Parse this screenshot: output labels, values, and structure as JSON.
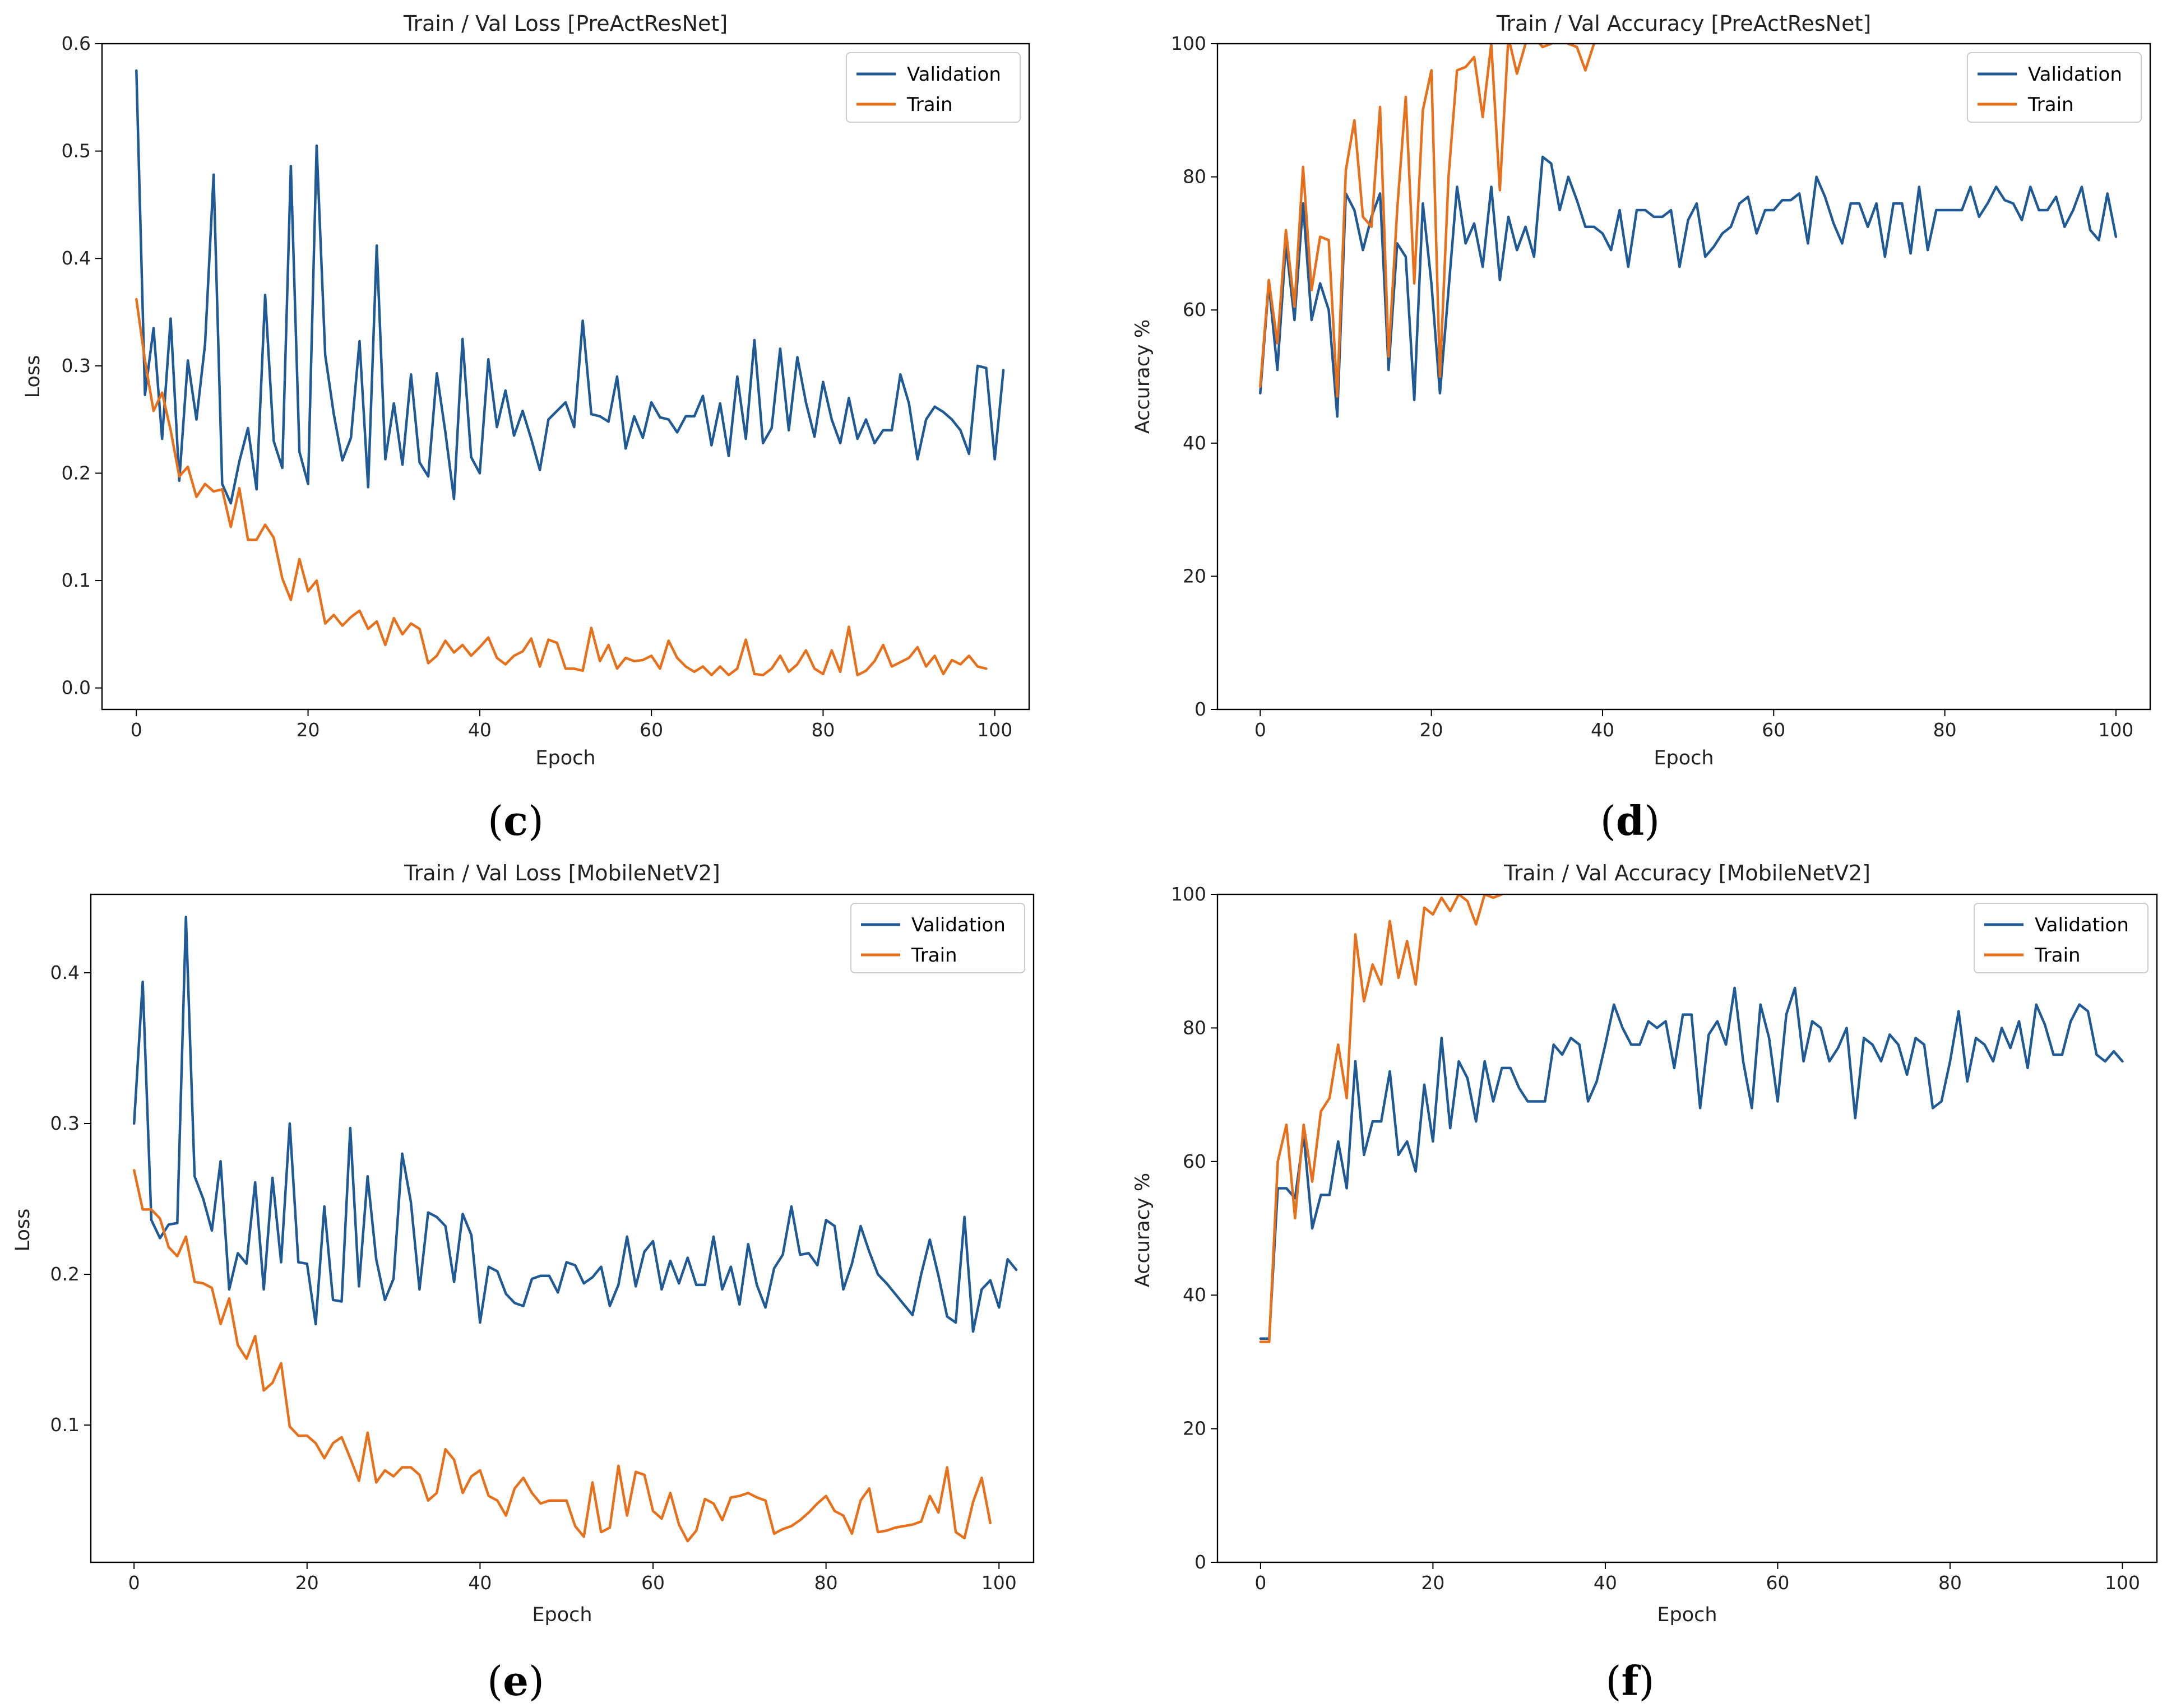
{
  "figure": {
    "captions": [
      {
        "open": "(",
        "letter": "c",
        "close": ")"
      },
      {
        "open": "(",
        "letter": "d",
        "close": ")"
      },
      {
        "open": "(",
        "letter": "e",
        "close": ")"
      },
      {
        "open": "(",
        "letter": "f",
        "close": ")"
      }
    ]
  },
  "colors": {
    "validation": "#1f5a96",
    "train": "#e8701a"
  },
  "chart_data": [
    {
      "type": "line",
      "title": "Train / Val Loss [PreActResNet]",
      "xlabel": "Epoch",
      "ylabel": "Loss",
      "xlim": [
        -4,
        104
      ],
      "ylim": [
        -0.02,
        0.6
      ],
      "xticks": [
        0,
        20,
        40,
        60,
        80,
        100
      ],
      "yticks": [
        0.0,
        0.1,
        0.2,
        0.3,
        0.4,
        0.5,
        0.6
      ],
      "ytick_labels": [
        "0.0",
        "0.1",
        "0.2",
        "0.3",
        "0.4",
        "0.5",
        "0.6"
      ],
      "legend": "top-right",
      "series": [
        {
          "name": "Validation",
          "x_start": 0,
          "values": [
            0.575,
            0.273,
            0.335,
            0.232,
            0.344,
            0.193,
            0.305,
            0.25,
            0.32,
            0.478,
            0.19,
            0.172,
            0.211,
            0.242,
            0.185,
            0.366,
            0.23,
            0.205,
            0.486,
            0.22,
            0.19,
            0.505,
            0.31,
            0.255,
            0.212,
            0.233,
            0.323,
            0.187,
            0.412,
            0.213,
            0.265,
            0.208,
            0.292,
            0.21,
            0.197,
            0.293,
            0.238,
            0.176,
            0.325,
            0.215,
            0.2,
            0.306,
            0.243,
            0.277,
            0.235,
            0.258,
            0.232,
            0.203,
            0.25,
            0.258,
            0.266,
            0.243,
            0.342,
            0.255,
            0.253,
            0.248,
            0.29,
            0.223,
            0.253,
            0.233,
            0.266,
            0.252,
            0.25,
            0.238,
            0.253,
            0.253,
            0.272,
            0.226,
            0.265,
            0.216,
            0.29,
            0.232,
            0.324,
            0.228,
            0.242,
            0.316,
            0.24,
            0.308,
            0.266,
            0.234,
            0.285,
            0.25,
            0.228,
            0.27,
            0.232,
            0.25,
            0.228,
            0.24,
            0.24,
            0.292,
            0.265,
            0.213,
            0.25,
            0.262,
            0.257,
            0.25,
            0.24,
            0.218,
            0.3,
            0.298,
            0.213,
            0.296
          ]
        },
        {
          "name": "Train",
          "x_start": 0,
          "values": [
            0.362,
            0.305,
            0.258,
            0.275,
            0.24,
            0.197,
            0.206,
            0.178,
            0.19,
            0.183,
            0.185,
            0.15,
            0.186,
            0.138,
            0.138,
            0.152,
            0.14,
            0.102,
            0.082,
            0.12,
            0.09,
            0.1,
            0.06,
            0.068,
            0.058,
            0.066,
            0.072,
            0.055,
            0.062,
            0.04,
            0.065,
            0.05,
            0.06,
            0.055,
            0.023,
            0.03,
            0.044,
            0.033,
            0.04,
            0.03,
            0.038,
            0.047,
            0.028,
            0.022,
            0.03,
            0.034,
            0.046,
            0.02,
            0.045,
            0.042,
            0.018,
            0.018,
            0.016,
            0.056,
            0.025,
            0.04,
            0.018,
            0.028,
            0.025,
            0.026,
            0.03,
            0.018,
            0.044,
            0.028,
            0.02,
            0.015,
            0.02,
            0.012,
            0.02,
            0.012,
            0.018,
            0.045,
            0.013,
            0.012,
            0.018,
            0.03,
            0.015,
            0.022,
            0.035,
            0.018,
            0.013,
            0.035,
            0.015,
            0.057,
            0.012,
            0.016,
            0.025,
            0.04,
            0.02,
            0.024,
            0.028,
            0.038,
            0.02,
            0.03,
            0.013,
            0.026,
            0.022,
            0.03,
            0.02,
            0.018
          ]
        }
      ]
    },
    {
      "type": "line",
      "title": "Train / Val Accuracy [PreActResNet]",
      "xlabel": "Epoch",
      "ylabel": "Accuracy %",
      "xlim": [
        -5,
        104
      ],
      "ylim": [
        0,
        100
      ],
      "xticks": [
        0,
        20,
        40,
        60,
        80,
        100
      ],
      "yticks": [
        0,
        20,
        40,
        60,
        80,
        100
      ],
      "ytick_labels": [
        "0",
        "20",
        "40",
        "60",
        "80",
        "100"
      ],
      "legend": "top-right",
      "series": [
        {
          "name": "Validation",
          "x_start": 0,
          "values": [
            47.5,
            64,
            51,
            70,
            58.5,
            76,
            58.5,
            64,
            60,
            44,
            77.5,
            75,
            69,
            74,
            77.5,
            51,
            70,
            68,
            46.5,
            76,
            64,
            47.5,
            63,
            78.5,
            70,
            73,
            66.5,
            78.5,
            64.5,
            74,
            69,
            72.5,
            68,
            83,
            82,
            75,
            80,
            76.5,
            72.5,
            72.5,
            71.5,
            69,
            75,
            66.5,
            75,
            75,
            74,
            74,
            75,
            66.5,
            73.5,
            76,
            68,
            69.5,
            71.5,
            72.5,
            76,
            77,
            71.5,
            75,
            75,
            76.5,
            76.5,
            77.5,
            70,
            80,
            77,
            73,
            70,
            76,
            76,
            72.5,
            76,
            68,
            76,
            76,
            68.5,
            78.5,
            69,
            75,
            75,
            75,
            75,
            78.5,
            74,
            76,
            78.5,
            76.5,
            76,
            73.5,
            78.5,
            75,
            75,
            77,
            72.5,
            75,
            78.5,
            72,
            70.5,
            77.5,
            71
          ]
        },
        {
          "name": "Train",
          "x_start": 0,
          "values": [
            48.5,
            64.5,
            55,
            72,
            60.5,
            81.5,
            63,
            71,
            70.5,
            47,
            81,
            88.5,
            74,
            72.5,
            90.5,
            53,
            75,
            92,
            64,
            90,
            96,
            50,
            80,
            96,
            96.5,
            98,
            89,
            100,
            78,
            101,
            95.5,
            100,
            101,
            99.5,
            100,
            101,
            100,
            99.5,
            96,
            100
          ]
        }
      ]
    },
    {
      "type": "line",
      "title": "Train / Val Loss [MobileNetV2]",
      "xlabel": "Epoch",
      "ylabel": "Loss",
      "xlim": [
        -5,
        104
      ],
      "ylim": [
        0.009,
        0.452
      ],
      "xticks": [
        0,
        20,
        40,
        60,
        80,
        100
      ],
      "yticks": [
        0.1,
        0.2,
        0.3,
        0.4
      ],
      "ytick_labels": [
        "0.1",
        "0.2",
        "0.3",
        "0.4"
      ],
      "legend": "top-right",
      "series": [
        {
          "name": "Validation",
          "x_start": 0,
          "values": [
            0.3,
            0.394,
            0.236,
            0.224,
            0.233,
            0.234,
            0.437,
            0.265,
            0.25,
            0.229,
            0.275,
            0.19,
            0.214,
            0.207,
            0.261,
            0.19,
            0.264,
            0.208,
            0.3,
            0.208,
            0.207,
            0.167,
            0.245,
            0.183,
            0.182,
            0.297,
            0.192,
            0.265,
            0.21,
            0.183,
            0.197,
            0.28,
            0.248,
            0.19,
            0.241,
            0.238,
            0.232,
            0.195,
            0.24,
            0.226,
            0.168,
            0.205,
            0.202,
            0.187,
            0.181,
            0.179,
            0.197,
            0.199,
            0.199,
            0.188,
            0.208,
            0.206,
            0.194,
            0.198,
            0.205,
            0.179,
            0.193,
            0.225,
            0.192,
            0.215,
            0.222,
            0.19,
            0.209,
            0.194,
            0.211,
            0.193,
            0.193,
            0.225,
            0.19,
            0.205,
            0.18,
            0.22,
            0.193,
            0.178,
            0.204,
            0.213,
            0.245,
            0.213,
            0.214,
            0.206,
            0.236,
            0.232,
            0.19,
            0.207,
            0.232,
            0.215,
            0.2,
            0.194,
            0.187,
            0.18,
            0.173,
            0.2,
            0.223,
            0.199,
            0.172,
            0.168,
            0.238,
            0.162,
            0.19,
            0.196,
            0.178,
            0.21,
            0.203
          ]
        },
        {
          "name": "Train",
          "x_start": 0,
          "values": [
            0.269,
            0.243,
            0.243,
            0.237,
            0.218,
            0.212,
            0.225,
            0.195,
            0.194,
            0.191,
            0.167,
            0.184,
            0.153,
            0.144,
            0.159,
            0.123,
            0.128,
            0.141,
            0.099,
            0.093,
            0.093,
            0.088,
            0.078,
            0.088,
            0.092,
            0.078,
            0.063,
            0.095,
            0.062,
            0.07,
            0.066,
            0.072,
            0.072,
            0.067,
            0.05,
            0.055,
            0.084,
            0.077,
            0.055,
            0.066,
            0.07,
            0.053,
            0.05,
            0.04,
            0.058,
            0.065,
            0.055,
            0.048,
            0.05,
            0.05,
            0.05,
            0.033,
            0.026,
            0.062,
            0.029,
            0.032,
            0.073,
            0.04,
            0.069,
            0.067,
            0.043,
            0.038,
            0.055,
            0.034,
            0.023,
            0.03,
            0.051,
            0.048,
            0.037,
            0.052,
            0.053,
            0.055,
            0.052,
            0.05,
            0.028,
            0.031,
            0.033,
            0.037,
            0.042,
            0.048,
            0.053,
            0.043,
            0.04,
            0.028,
            0.05,
            0.058,
            0.029,
            0.03,
            0.032,
            0.033,
            0.034,
            0.036,
            0.053,
            0.042,
            0.072,
            0.029,
            0.025,
            0.049,
            0.065,
            0.035
          ]
        }
      ]
    },
    {
      "type": "line",
      "title": "Train / Val Accuracy [MobileNetV2]",
      "xlabel": "Epoch",
      "ylabel": "Accuracy %",
      "xlim": [
        -5,
        104
      ],
      "ylim": [
        0,
        100
      ],
      "xticks": [
        0,
        20,
        40,
        60,
        80,
        100
      ],
      "yticks": [
        0,
        20,
        40,
        60,
        80,
        100
      ],
      "ytick_labels": [
        "0",
        "20",
        "40",
        "60",
        "80",
        "100"
      ],
      "legend": "top-right",
      "series": [
        {
          "name": "Validation",
          "x_start": 0,
          "values": [
            33.5,
            33.5,
            56,
            56,
            54.5,
            64,
            50,
            55,
            55,
            63,
            56,
            75,
            61,
            66,
            66,
            73.5,
            61,
            63,
            58.5,
            71.5,
            63,
            78.5,
            65,
            75,
            72.5,
            66,
            75,
            69,
            74,
            74,
            71,
            69,
            69,
            69,
            77.5,
            76,
            78.5,
            77.5,
            69,
            72,
            77.5,
            83.5,
            80,
            77.5,
            77.5,
            81,
            80,
            81,
            74,
            82,
            82,
            68,
            79,
            81,
            77.5,
            86,
            75,
            68,
            83.5,
            78.5,
            69,
            82,
            86,
            75,
            81,
            80,
            75,
            77,
            80,
            66.5,
            78.5,
            77.5,
            75,
            79,
            77.5,
            73,
            78.5,
            77.5,
            68,
            69,
            75,
            82.5,
            72,
            78.5,
            77.5,
            75,
            80,
            77,
            81,
            74,
            83.5,
            80.5,
            76,
            76,
            81,
            83.5,
            82.5,
            76,
            75,
            76.5,
            75
          ]
        },
        {
          "name": "Train",
          "x_start": 0,
          "values": [
            33,
            33,
            60,
            65.5,
            51.5,
            65.5,
            57,
            67.5,
            69.5,
            77.5,
            69.5,
            94,
            84,
            89.5,
            86.5,
            96,
            87.5,
            93,
            86.5,
            98,
            97,
            99.5,
            97.5,
            100,
            99,
            95.5,
            100,
            99.5,
            100
          ]
        }
      ]
    }
  ]
}
